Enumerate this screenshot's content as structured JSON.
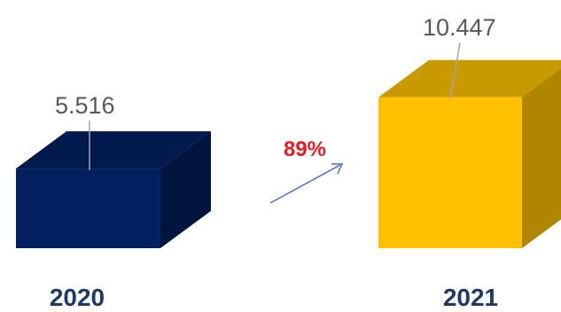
{
  "chart_data": {
    "type": "bar",
    "categories": [
      "2020",
      "2021"
    ],
    "values": [
      5.516,
      10.447
    ],
    "value_labels": [
      "5.516",
      "10.447"
    ],
    "growth_label": "89%",
    "title": "",
    "xlabel": "",
    "ylabel": "",
    "ylim": [
      0,
      12
    ],
    "grid": false,
    "legend": "none",
    "colors": {
      "bar_2020": {
        "front": "#002060",
        "top": "#001a4d",
        "side": "#00153f"
      },
      "bar_2021": {
        "front": "#ffc000",
        "top": "#c99a00",
        "side": "#b08600"
      },
      "growth": "#e31b23",
      "arrow": "#4472c4",
      "leader_line": "#a6a6a6",
      "category_text": "#1f3864"
    }
  }
}
